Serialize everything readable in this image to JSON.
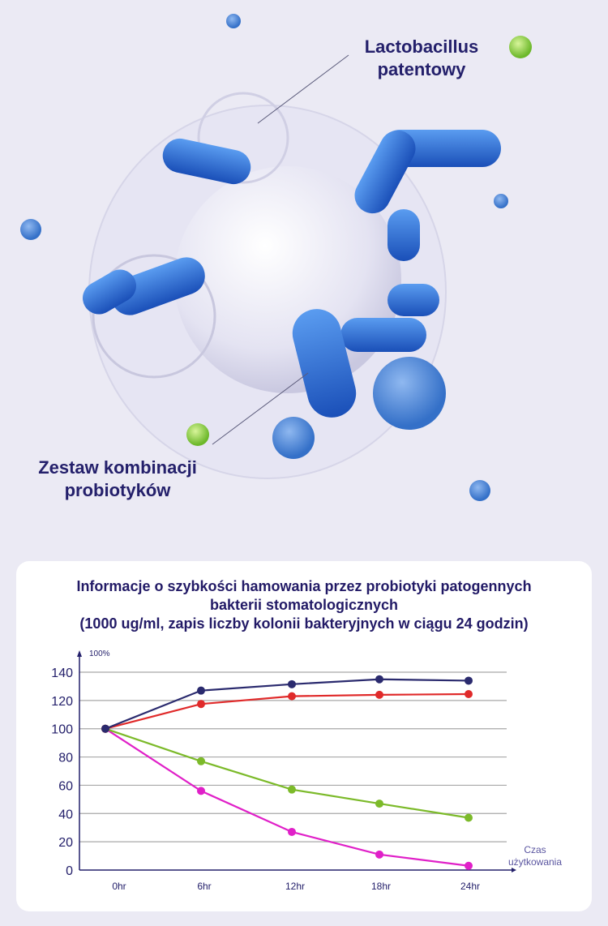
{
  "hero": {
    "label_top": [
      "Lactobacillus",
      "patentowy"
    ],
    "label_bottom": [
      "Zestaw kombinacji",
      "probiotyków"
    ]
  },
  "chart_data": {
    "type": "line",
    "title": [
      "Informacje o szybkości hamowania przez probiotyki patogennych",
      "bakterii stomatologicznych",
      "(1000 ug/ml, zapis liczby kolonii bakteryjnych w ciągu 24 godzin)"
    ],
    "ylabel": "100%",
    "xlabel": [
      "Czas",
      "użytkowania"
    ],
    "categories": [
      "0hr",
      "6hr",
      "12hr",
      "18hr",
      "24hr"
    ],
    "yticks": [
      0,
      20,
      40,
      60,
      80,
      100,
      120,
      140
    ],
    "ylim": [
      0,
      140
    ],
    "grid": true,
    "series": [
      {
        "color": "#2a2a6e",
        "values": [
          100,
          127,
          131.5,
          135,
          134
        ]
      },
      {
        "color": "#e02a2a",
        "values": [
          100,
          117.5,
          123,
          124,
          124.5
        ]
      },
      {
        "color": "#7cba2a",
        "values": [
          100,
          77,
          57,
          47,
          37
        ]
      },
      {
        "color": "#e020c8",
        "values": [
          100,
          56,
          27,
          11,
          3
        ]
      }
    ]
  }
}
